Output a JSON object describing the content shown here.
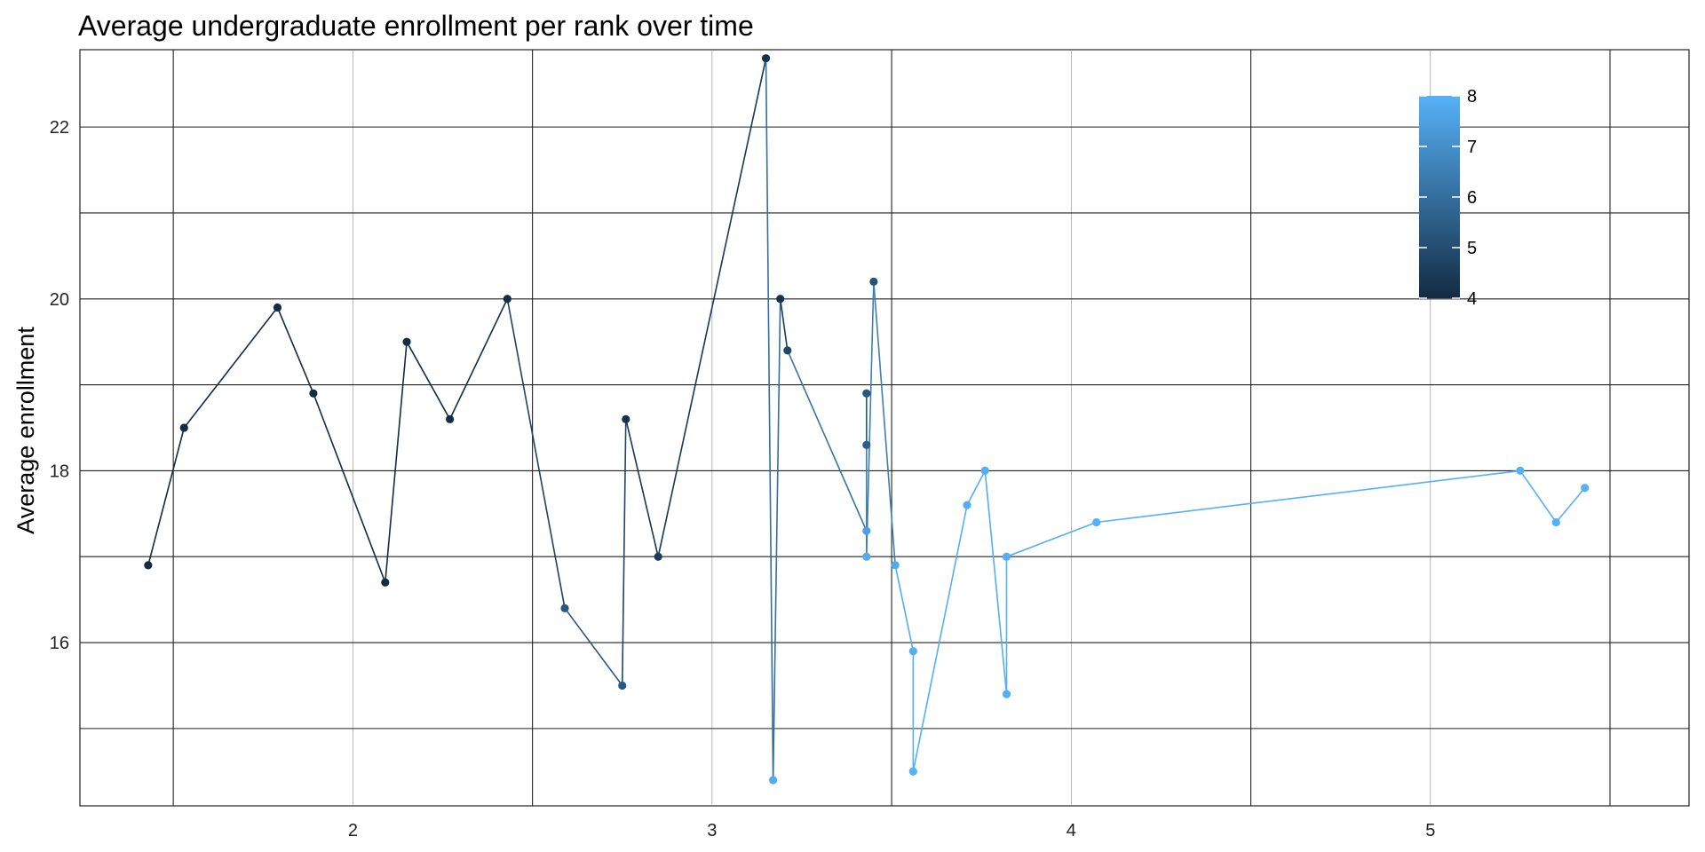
{
  "chart_data": {
    "type": "line",
    "title": "Average undergraduate enrollment per rank over time",
    "xlabel": "",
    "ylabel": "Average enrollment",
    "xlim": [
      1.24,
      5.72
    ],
    "ylim": [
      14.1,
      22.9
    ],
    "x_ticks": [
      2,
      3,
      4,
      5
    ],
    "x_tick_labels": [
      "2",
      "3",
      "4",
      "5"
    ],
    "y_ticks": [
      16,
      18,
      20,
      22
    ],
    "y_tick_labels": [
      "16",
      "18",
      "20",
      "22"
    ],
    "grid": true,
    "legend": {
      "placement": "top-right",
      "type": "colorbar",
      "range": [
        4,
        8
      ],
      "ticks": [
        4,
        5,
        6,
        7,
        8
      ],
      "tick_labels": [
        "4",
        "5",
        "6",
        "7",
        "8"
      ],
      "low_color": "#132B43",
      "high_color": "#56B1F7"
    },
    "points": [
      {
        "x": 1.43,
        "y": 16.9,
        "c": 4.0
      },
      {
        "x": 1.53,
        "y": 18.5,
        "c": 4.0
      },
      {
        "x": 1.79,
        "y": 19.9,
        "c": 4.0
      },
      {
        "x": 1.89,
        "y": 18.9,
        "c": 4.0
      },
      {
        "x": 2.09,
        "y": 16.7,
        "c": 4.0
      },
      {
        "x": 2.15,
        "y": 19.5,
        "c": 4.1
      },
      {
        "x": 2.27,
        "y": 18.6,
        "c": 4.1
      },
      {
        "x": 2.43,
        "y": 20.0,
        "c": 4.1
      },
      {
        "x": 2.59,
        "y": 16.4,
        "c": 5.3
      },
      {
        "x": 2.75,
        "y": 15.5,
        "c": 5.3
      },
      {
        "x": 2.76,
        "y": 18.6,
        "c": 4.2
      },
      {
        "x": 2.85,
        "y": 17.0,
        "c": 4.5
      },
      {
        "x": 3.15,
        "y": 22.8,
        "c": 4.2
      },
      {
        "x": 3.17,
        "y": 14.4,
        "c": 7.8
      },
      {
        "x": 3.19,
        "y": 20.0,
        "c": 4.2
      },
      {
        "x": 3.21,
        "y": 19.4,
        "c": 4.8
      },
      {
        "x": 3.43,
        "y": 17.3,
        "c": 7.5
      },
      {
        "x": 3.43,
        "y": 18.9,
        "c": 5.3
      },
      {
        "x": 3.43,
        "y": 18.3,
        "c": 5.5
      },
      {
        "x": 3.43,
        "y": 17.0,
        "c": 7.8
      },
      {
        "x": 3.45,
        "y": 20.2,
        "c": 5.2
      },
      {
        "x": 3.51,
        "y": 16.9,
        "c": 7.8
      },
      {
        "x": 3.56,
        "y": 15.9,
        "c": 7.9
      },
      {
        "x": 3.56,
        "y": 14.5,
        "c": 8.0
      },
      {
        "x": 3.71,
        "y": 17.6,
        "c": 7.9
      },
      {
        "x": 3.76,
        "y": 18.0,
        "c": 7.9
      },
      {
        "x": 3.82,
        "y": 15.4,
        "c": 7.9
      },
      {
        "x": 3.82,
        "y": 17.0,
        "c": 7.9
      },
      {
        "x": 4.07,
        "y": 17.4,
        "c": 8.0
      },
      {
        "x": 5.25,
        "y": 18.0,
        "c": 8.0
      },
      {
        "x": 5.35,
        "y": 17.4,
        "c": 8.0
      },
      {
        "x": 5.43,
        "y": 17.8,
        "c": 8.0
      }
    ]
  }
}
